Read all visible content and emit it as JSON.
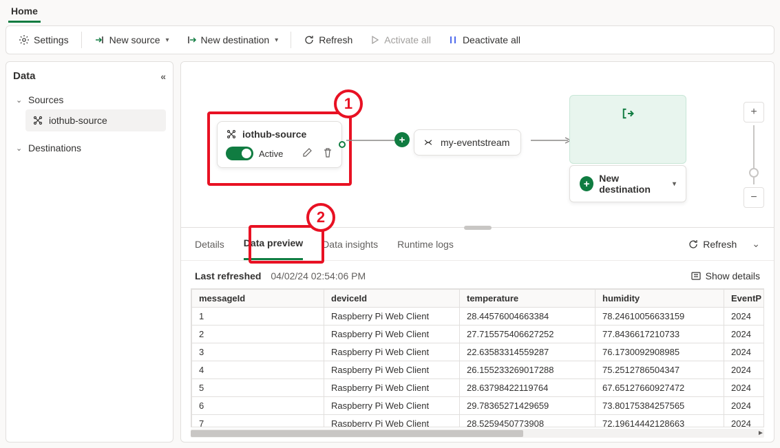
{
  "tabs": {
    "home": "Home"
  },
  "toolbar": {
    "settings": "Settings",
    "new_source": "New source",
    "new_destination": "New destination",
    "refresh": "Refresh",
    "activate_all": "Activate all",
    "deactivate_all": "Deactivate all"
  },
  "sidebar": {
    "title": "Data",
    "sources_label": "Sources",
    "destinations_label": "Destinations",
    "source_item": "iothub-source"
  },
  "canvas": {
    "source": {
      "name": "iothub-source",
      "status": "Active"
    },
    "eventstream": {
      "name": "my-eventstream"
    },
    "new_destination_label": "New destination"
  },
  "callouts": {
    "one": "1",
    "two": "2"
  },
  "bottom": {
    "tabs": {
      "details": "Details",
      "data_preview": "Data preview",
      "data_insights": "Data insights",
      "runtime_logs": "Runtime logs"
    },
    "refresh": "Refresh",
    "last_refreshed_label": "Last refreshed",
    "last_refreshed_time": "04/02/24 02:54:06 PM",
    "show_details": "Show details",
    "table": {
      "columns": [
        "messageId",
        "deviceId",
        "temperature",
        "humidity",
        "EventP"
      ],
      "rows": [
        [
          "1",
          "Raspberry Pi Web Client",
          "28.44576004663384",
          "78.24610056633159",
          "2024"
        ],
        [
          "2",
          "Raspberry Pi Web Client",
          "27.715575406627252",
          "77.8436617210733",
          "2024"
        ],
        [
          "3",
          "Raspberry Pi Web Client",
          "22.63583314559287",
          "76.1730092908985",
          "2024"
        ],
        [
          "4",
          "Raspberry Pi Web Client",
          "26.155233269017288",
          "75.2512786504347",
          "2024"
        ],
        [
          "5",
          "Raspberry Pi Web Client",
          "28.63798422119764",
          "67.65127660927472",
          "2024"
        ],
        [
          "6",
          "Raspberry Pi Web Client",
          "29.78365271429659",
          "73.80175384257565",
          "2024"
        ],
        [
          "7",
          "Raspberry Pi Web Client",
          "28.5259450773908",
          "72.19614442128663",
          "2024"
        ]
      ]
    }
  },
  "colors": {
    "accent": "#107c41",
    "callout": "#e81123",
    "border": "#e1dfdd",
    "muted": "#605e5c"
  }
}
